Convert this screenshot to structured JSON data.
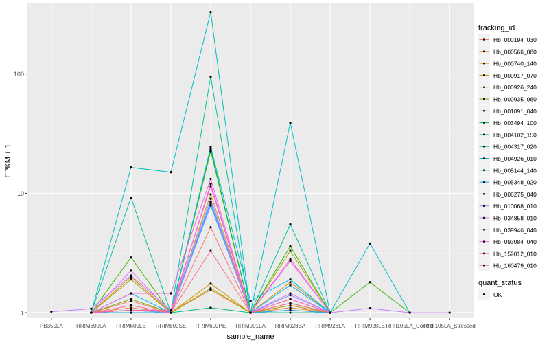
{
  "chart_data": {
    "type": "line",
    "xlabel": "sample_name",
    "ylabel": "FPKM + 1",
    "y_scale": "log",
    "ylim": [
      0.9,
      390
    ],
    "y_ticks": [
      1,
      10,
      100
    ],
    "y_tick_labels": [
      "1",
      "10",
      "100"
    ],
    "grid": true,
    "legend_position": "right",
    "categories": [
      "PB350LA",
      "RRIM600LA",
      "RRIM600LE",
      "RRIM600SE",
      "RRIM600PE",
      "RRIM901LA",
      "RRIM928BA",
      "RRIM928LA",
      "RRIM928LE",
      "RRII105LA_Control",
      "RRII105LA_Stressed"
    ],
    "color_legend_title": "tracking_id",
    "series": [
      {
        "name": "Hb_000194_030",
        "color": "#F8766D",
        "values": [
          null,
          1.0,
          1.25,
          1.0,
          5.2,
          1.0,
          1.3,
          1.0,
          null,
          null,
          null
        ]
      },
      {
        "name": "Hb_000566_060",
        "color": "#EA8331",
        "values": [
          null,
          1.0,
          1.1,
          1.0,
          1.55,
          1.0,
          1.1,
          1.0,
          null,
          null,
          null
        ]
      },
      {
        "name": "Hb_000740_140",
        "color": "#D89000",
        "values": [
          null,
          1.0,
          2.0,
          1.0,
          1.75,
          1.0,
          1.8,
          1.0,
          null,
          null,
          null
        ]
      },
      {
        "name": "Hb_000917_070",
        "color": "#C09B00",
        "values": [
          null,
          1.0,
          1.05,
          1.0,
          9.8,
          1.0,
          1.15,
          1.0,
          null,
          null,
          null
        ]
      },
      {
        "name": "Hb_000926_240",
        "color": "#A3A500",
        "values": [
          null,
          1.0,
          1.9,
          1.0,
          1.6,
          1.0,
          3.3,
          1.0,
          null,
          null,
          null
        ]
      },
      {
        "name": "Hb_000935_060",
        "color": "#7CAE00",
        "values": [
          null,
          1.0,
          1.3,
          1.0,
          22.5,
          1.0,
          1.2,
          1.0,
          null,
          null,
          null
        ]
      },
      {
        "name": "Hb_001091_040",
        "color": "#39B600",
        "values": [
          null,
          1.0,
          2.9,
          1.0,
          23.0,
          1.0,
          3.6,
          1.0,
          1.8,
          1.0,
          null
        ]
      },
      {
        "name": "Hb_003494_100",
        "color": "#00BB4E",
        "values": [
          null,
          1.0,
          1.05,
          1.0,
          23.5,
          1.0,
          1.05,
          1.0,
          null,
          null,
          null
        ]
      },
      {
        "name": "Hb_004102_150",
        "color": "#00BF7D",
        "values": [
          null,
          1.0,
          1.0,
          1.0,
          1.1,
          1.0,
          1.0,
          1.0,
          null,
          null,
          null
        ]
      },
      {
        "name": "Hb_004317_020",
        "color": "#00C1A3",
        "values": [
          null,
          1.0,
          9.2,
          1.0,
          95.0,
          1.0,
          5.5,
          1.0,
          null,
          null,
          null
        ]
      },
      {
        "name": "Hb_004926_010",
        "color": "#00BFC4",
        "values": [
          null,
          1.0,
          16.5,
          15.0,
          330.0,
          1.0,
          39.0,
          1.0,
          3.8,
          1.0,
          null
        ]
      },
      {
        "name": "Hb_005144_140",
        "color": "#00BAE0",
        "values": [
          null,
          1.0,
          1.45,
          1.0,
          24.5,
          1.25,
          1.9,
          1.0,
          null,
          null,
          null
        ]
      },
      {
        "name": "Hb_005348_020",
        "color": "#00B0F6",
        "values": [
          null,
          1.0,
          1.0,
          1.0,
          8.5,
          1.0,
          1.7,
          1.0,
          null,
          null,
          null
        ]
      },
      {
        "name": "Hb_006275_040",
        "color": "#35A2FF",
        "values": [
          null,
          1.0,
          1.05,
          1.0,
          7.9,
          1.0,
          1.05,
          1.0,
          null,
          null,
          null
        ]
      },
      {
        "name": "Hb_010068_010",
        "color": "#9590FF",
        "values": [
          null,
          1.0,
          1.05,
          1.0,
          8.2,
          1.0,
          1.4,
          1.0,
          null,
          null,
          null
        ]
      },
      {
        "name": "Hb_034858_010",
        "color": "#C77CFF",
        "values": [
          1.02,
          1.08,
          2.05,
          1.05,
          9.0,
          1.0,
          1.45,
          1.0,
          1.09,
          1.0,
          1.0
        ]
      },
      {
        "name": "Hb_039946_040",
        "color": "#E76BF3",
        "values": [
          null,
          1.0,
          2.25,
          1.0,
          12.0,
          1.0,
          2.7,
          1.0,
          null,
          null,
          null
        ]
      },
      {
        "name": "Hb_093084_040",
        "color": "#FA62DB",
        "values": [
          null,
          1.0,
          1.45,
          1.45,
          13.2,
          1.0,
          2.8,
          1.0,
          null,
          null,
          null
        ]
      },
      {
        "name": "Hb_159012_010",
        "color": "#FF62BC",
        "values": [
          null,
          1.0,
          1.05,
          1.05,
          11.5,
          1.0,
          1.3,
          1.0,
          null,
          null,
          null
        ]
      },
      {
        "name": "Hb_160479_010",
        "color": "#FF6C91",
        "values": [
          null,
          1.0,
          1.15,
          1.0,
          3.3,
          1.0,
          1.2,
          1.0,
          null,
          null,
          null
        ]
      }
    ],
    "shape_legend": {
      "title": "quant_status",
      "entries": [
        {
          "label": "OK",
          "shape": "point",
          "color": "#000000"
        }
      ]
    },
    "colors": {
      "panel_background": "#EBEBEB",
      "grid_major": "#FFFFFF",
      "point": "#000000"
    }
  }
}
